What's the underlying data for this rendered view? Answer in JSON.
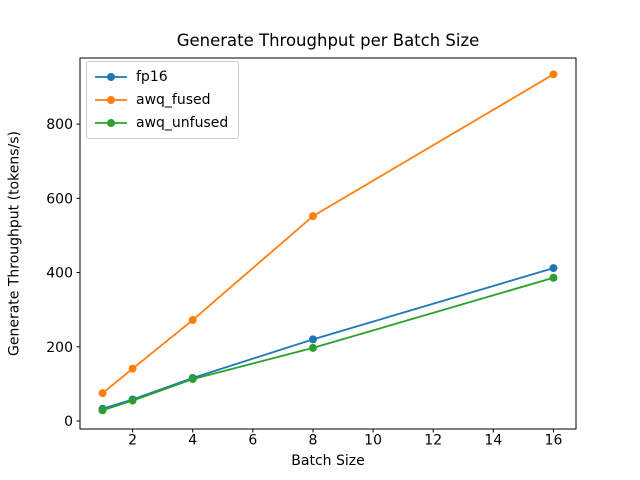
{
  "chart_data": {
    "type": "line",
    "title": "Generate Throughput per Batch Size",
    "xlabel": "Batch Size",
    "ylabel": "Generate Throughput (tokens/s)",
    "x": [
      1,
      2,
      4,
      8,
      16
    ],
    "series": [
      {
        "name": "fp16",
        "color": "#1f77b4",
        "values": [
          33,
          58,
          116,
          220,
          412
        ]
      },
      {
        "name": "awq_fused",
        "color": "#ff7f0e",
        "values": [
          75,
          141,
          272,
          552,
          934
        ]
      },
      {
        "name": "awq_unfused",
        "color": "#2ca02c",
        "values": [
          29,
          55,
          113,
          197,
          386
        ]
      }
    ],
    "x_ticks": [
      2,
      4,
      6,
      8,
      10,
      12,
      14,
      16
    ],
    "y_ticks": [
      0,
      200,
      400,
      600,
      800
    ],
    "xlim": [
      0.25,
      16.75
    ],
    "ylim": [
      -21.5,
      978
    ],
    "grid": false,
    "legend_position": "upper left",
    "marker": "circle",
    "axis_color": "#000000",
    "background_color": "#ffffff"
  }
}
